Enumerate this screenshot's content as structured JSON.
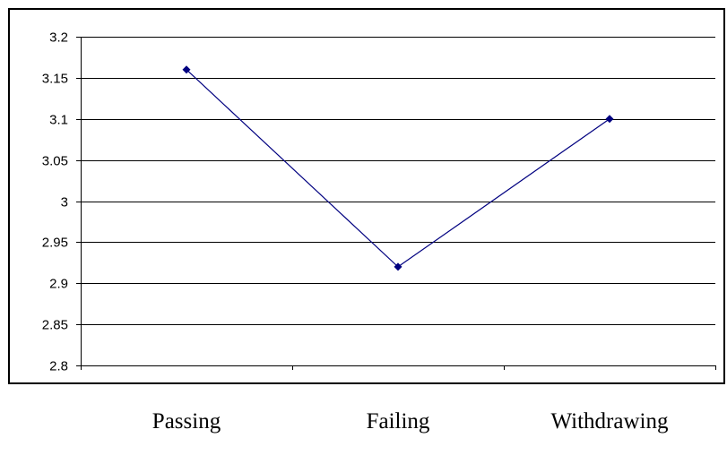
{
  "chart_data": {
    "type": "line",
    "categories": [
      "Passing",
      "Failing",
      "Withdrawing"
    ],
    "series": [
      {
        "values": [
          3.16,
          2.92,
          3.1
        ],
        "color": "#000080",
        "marker": "diamond"
      }
    ],
    "ylim": [
      2.8,
      3.2
    ],
    "yticks": [
      2.8,
      2.85,
      2.9,
      2.95,
      3,
      3.05,
      3.1,
      3.15,
      3.2
    ],
    "ytick_labels": [
      "2.8",
      "2.85",
      "2.9",
      "2.95",
      "3",
      "3.05",
      "3.1",
      "3.15",
      "3.2"
    ],
    "grid": true,
    "gridline_color": "#000000",
    "plot_background": "#ffffff"
  }
}
